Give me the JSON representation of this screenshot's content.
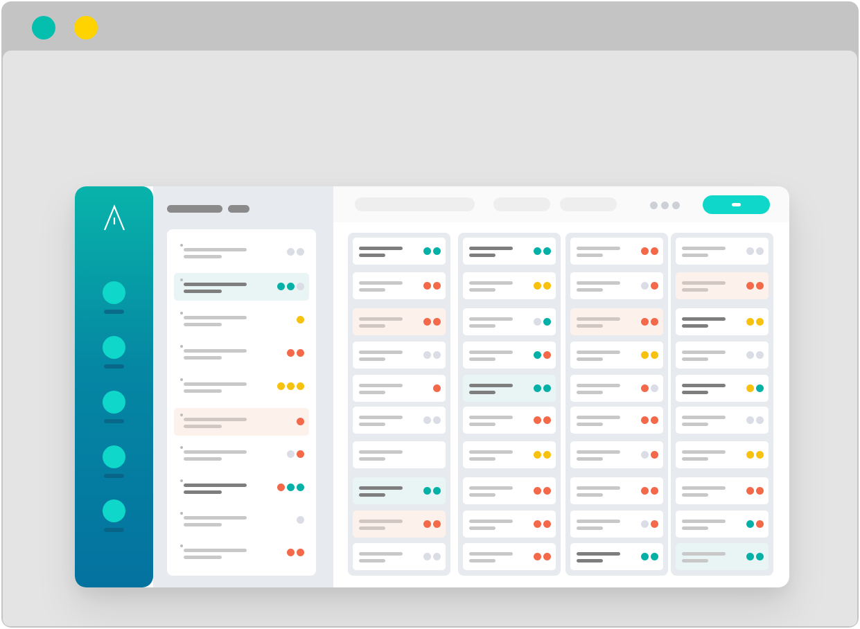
{
  "colors": {
    "teal": "#05b1a7",
    "red": "#f4694a",
    "yellow": "#f7c20f",
    "gray": "#dadde5",
    "window_dot_teal": "#04bfae",
    "window_dot_yellow": "#ffd300",
    "accent": "#0fd7c9"
  },
  "window": {
    "controls": [
      "window-dot-teal",
      "window-dot-yellow"
    ]
  },
  "rail": {
    "logo_icon": "logo-a-icon",
    "items": [
      "nav-item-1",
      "nav-item-2",
      "nav-item-3",
      "nav-item-4",
      "nav-item-5"
    ]
  },
  "list": {
    "rows": [
      {
        "style": "plain",
        "dots": [
          "gray",
          "gray"
        ]
      },
      {
        "style": "dark-teal",
        "dots": [
          "teal",
          "teal",
          "gray"
        ]
      },
      {
        "style": "plain",
        "dots": [
          "yellow"
        ]
      },
      {
        "style": "plain",
        "dots": [
          "red",
          "red"
        ]
      },
      {
        "style": "plain",
        "dots": [
          "yellow",
          "yellow",
          "yellow"
        ]
      },
      {
        "style": "peach",
        "dots": [
          "red"
        ]
      },
      {
        "style": "plain",
        "dots": [
          "gray",
          "red"
        ]
      },
      {
        "style": "dark",
        "dots": [
          "red",
          "teal",
          "teal"
        ]
      },
      {
        "style": "plain",
        "dots": [
          "gray"
        ]
      },
      {
        "style": "plain",
        "dots": [
          "red",
          "red"
        ]
      }
    ]
  },
  "board": {
    "columns": [
      {
        "cards": [
          {
            "style": "dark",
            "dots": [
              "teal",
              "teal"
            ]
          },
          {
            "style": "plain",
            "dots": [
              "red",
              "red"
            ]
          },
          {
            "style": "peach",
            "dots": [
              "red",
              "red"
            ]
          },
          {
            "style": "plain",
            "dots": [
              "gray",
              "gray"
            ]
          },
          {
            "style": "plain",
            "dots": [
              "red"
            ]
          },
          {
            "style": "plain",
            "dots": [
              "gray",
              "gray"
            ]
          },
          {
            "style": "plain",
            "dots": []
          },
          {
            "style": "dark-teal",
            "dots": [
              "teal",
              "teal"
            ]
          },
          {
            "style": "peach",
            "dots": [
              "red",
              "red"
            ]
          },
          {
            "style": "plain",
            "dots": [
              "gray",
              "gray"
            ]
          }
        ]
      },
      {
        "cards": [
          {
            "style": "dark",
            "dots": [
              "teal",
              "teal"
            ]
          },
          {
            "style": "plain",
            "dots": [
              "yellow",
              "yellow"
            ]
          },
          {
            "style": "plain",
            "dots": [
              "gray",
              "teal"
            ]
          },
          {
            "style": "plain",
            "dots": [
              "teal",
              "red"
            ]
          },
          {
            "style": "dark-teal",
            "dots": [
              "teal",
              "teal"
            ]
          },
          {
            "style": "plain",
            "dots": [
              "red",
              "red"
            ]
          },
          {
            "style": "plain",
            "dots": [
              "yellow",
              "yellow"
            ]
          },
          {
            "style": "plain",
            "dots": [
              "red",
              "red"
            ]
          },
          {
            "style": "plain",
            "dots": [
              "red",
              "red"
            ]
          },
          {
            "style": "plain",
            "dots": [
              "red",
              "red"
            ]
          }
        ]
      },
      {
        "cards": [
          {
            "style": "plain",
            "dots": [
              "red",
              "red"
            ]
          },
          {
            "style": "plain",
            "dots": [
              "gray",
              "red"
            ]
          },
          {
            "style": "peach",
            "dots": [
              "red",
              "red"
            ]
          },
          {
            "style": "plain",
            "dots": [
              "yellow",
              "yellow"
            ]
          },
          {
            "style": "plain",
            "dots": [
              "red",
              "gray"
            ]
          },
          {
            "style": "plain",
            "dots": [
              "red",
              "red"
            ]
          },
          {
            "style": "plain",
            "dots": [
              "gray",
              "red"
            ]
          },
          {
            "style": "plain",
            "dots": [
              "red",
              "red"
            ]
          },
          {
            "style": "plain",
            "dots": [
              "gray",
              "red"
            ]
          },
          {
            "style": "dark",
            "dots": [
              "teal",
              "teal"
            ]
          }
        ]
      },
      {
        "cards": [
          {
            "style": "plain",
            "dots": [
              "gray",
              "gray"
            ]
          },
          {
            "style": "peach",
            "dots": [
              "red",
              "red"
            ]
          },
          {
            "style": "dark",
            "dots": [
              "yellow",
              "yellow"
            ]
          },
          {
            "style": "plain",
            "dots": [
              "gray",
              "gray"
            ]
          },
          {
            "style": "dark",
            "dots": [
              "yellow",
              "teal"
            ]
          },
          {
            "style": "plain",
            "dots": [
              "gray",
              "gray"
            ]
          },
          {
            "style": "plain",
            "dots": [
              "yellow",
              "yellow"
            ]
          },
          {
            "style": "plain",
            "dots": [
              "red",
              "red"
            ]
          },
          {
            "style": "plain",
            "dots": [
              "teal",
              "red"
            ]
          },
          {
            "style": "teal",
            "dots": [
              "teal",
              "teal"
            ]
          }
        ]
      }
    ]
  }
}
